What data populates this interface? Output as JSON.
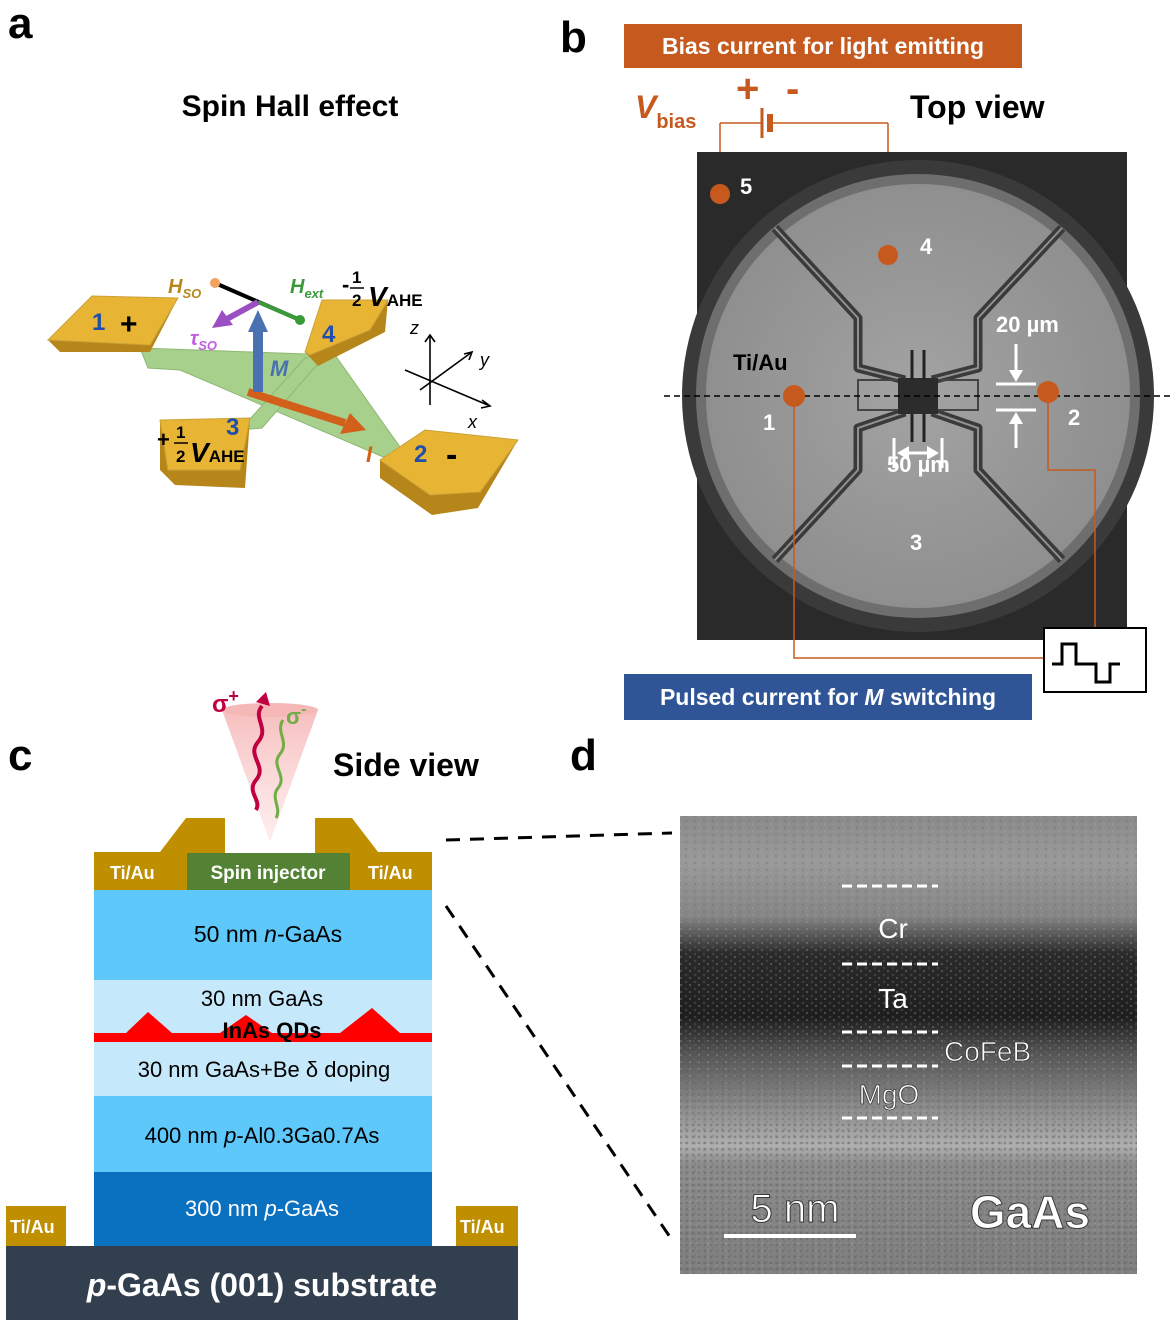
{
  "panel_letters": {
    "a": "a",
    "b": "b",
    "c": "c",
    "d": "d"
  },
  "panel_a": {
    "title": "Spin Hall effect",
    "pad1_num": "1",
    "pad1_sign": "+",
    "pad2_num": "2",
    "pad2_sign": "-",
    "pad3_num": "3",
    "pad4_num": "4",
    "v_frac_left_sign": "+",
    "v_frac_right_sign": "-",
    "frac_num": "1",
    "frac_den": "2",
    "v_letter": "V",
    "v_sub": "AHE",
    "h_so": "H",
    "h_so_sub": "SO",
    "h_ext": "H",
    "h_ext_sub": "ext",
    "tau": "τ",
    "tau_sub": "SO",
    "m_label": "M",
    "i_label": "I",
    "axis_x": "x",
    "axis_y": "y",
    "axis_z": "z",
    "colors": {
      "gold": "#e8b434",
      "gold_dark": "#b7861a",
      "channel": "#a8d08d",
      "m_arrow": "#4a72b0",
      "i_arrow": "#d2601a",
      "tau": "#9b4fc2",
      "hext": "#3a9a3a"
    }
  },
  "panel_b": {
    "bias_banner": "Bias current for light emitting",
    "vbias_v": "V",
    "vbias_sub": "bias",
    "plus": "+",
    "minus": "-",
    "top_view": "Top view",
    "contacts": [
      "1",
      "2",
      "3",
      "4",
      "5"
    ],
    "ti_au": "Ti/Au",
    "dim_20": "20 µm",
    "dim_50": "50 µm",
    "pulse_banner_pre": "Pulsed current for ",
    "pulse_banner_m": "M",
    "pulse_banner_post": " switching",
    "colors": {
      "banner_orange": "#c65a1e",
      "banner_blue": "#2f5597",
      "dot": "#c65a1e"
    }
  },
  "panel_c": {
    "side_view": "Side view",
    "sigma_plus": "σ",
    "sigma_plus_sup": "+",
    "sigma_minus": "σ",
    "sigma_minus_sup": "-",
    "ti_au": "Ti/Au",
    "spin_injector": "Spin injector",
    "layers": [
      {
        "pre": "50 nm ",
        "it": "n",
        "post": "-GaAs",
        "color": "#5ec8fb"
      },
      {
        "pre": "30 nm GaAs",
        "it": "",
        "post": "",
        "color": "#c6e8fb"
      },
      {
        "pre": "30 nm GaAs+Be δ doping",
        "it": "",
        "post": "",
        "color": "#c6e8fb"
      },
      {
        "pre": "400 nm ",
        "it": "p",
        "post": "-Al0.3Ga0.7As",
        "color": "#5ec8fb"
      },
      {
        "pre": "300 nm ",
        "it": "p",
        "post": "-GaAs",
        "color": "#0a70c0"
      }
    ],
    "qd_label": "InAs QDs",
    "substrate_it": "p",
    "substrate_post": "-GaAs (001) substrate",
    "colors": {
      "metal": "#bf8f00",
      "injector": "#548235",
      "substrate": "#323f4f",
      "qd": "#ff0000"
    }
  },
  "panel_d": {
    "layers": [
      "Cr",
      "Ta",
      "CoFeB",
      "MgO"
    ],
    "substrate": "GaAs",
    "scale_bar": "5 nm"
  }
}
